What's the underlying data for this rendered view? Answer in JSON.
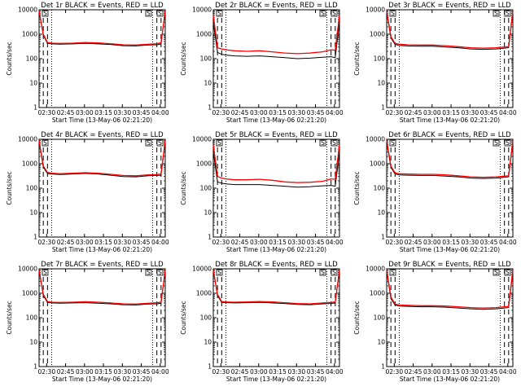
{
  "chart_data": [
    {
      "type": "line",
      "title": "Det 1r BLACK = Events, RED = LLD",
      "xlabel": "Start Time (13-May-06 02:21:20)",
      "ylabel": "Counts/sec",
      "y_scale": "log",
      "ylim": [
        1,
        10000
      ],
      "x_ticks": [
        "02:30",
        "02:45",
        "03:00",
        "03:15",
        "03:30",
        "03:45",
        "04:00"
      ],
      "y_ticks": [
        "1",
        "10",
        "100",
        "1000",
        "10000"
      ],
      "markers": [
        "S",
        "S",
        "S"
      ],
      "series": [
        {
          "color": "#000000",
          "x": [
            0,
            5,
            10,
            15,
            25,
            40,
            55,
            70,
            85,
            100,
            115,
            130,
            140,
            145,
            150
          ],
          "y": [
            9000,
            900,
            420,
            400,
            390,
            400,
            420,
            400,
            380,
            340,
            330,
            360,
            370,
            400,
            9000
          ]
        },
        {
          "color": "#ff0000",
          "x": [
            0,
            5,
            10,
            15,
            25,
            40,
            55,
            70,
            85,
            100,
            115,
            130,
            140,
            145,
            150
          ],
          "y": [
            9000,
            1000,
            460,
            430,
            420,
            430,
            460,
            440,
            410,
            370,
            360,
            390,
            410,
            450,
            9000
          ]
        }
      ]
    },
    {
      "type": "line",
      "title": "Det 2r BLACK = Events, RED = LLD",
      "xlabel": "Start Time (13-May-06 02:21:20)",
      "ylabel": "Counts/sec",
      "y_scale": "log",
      "ylim": [
        1,
        10000
      ],
      "x_ticks": [
        "02:30",
        "02:45",
        "03:00",
        "03:15",
        "03:30",
        "03:45",
        "04:00"
      ],
      "y_ticks": [
        "1",
        "10",
        "100",
        "1000",
        "10000"
      ],
      "markers": [
        "S",
        "S",
        "S"
      ],
      "series": [
        {
          "color": "#000000",
          "x": [
            0,
            5,
            10,
            15,
            25,
            40,
            55,
            70,
            85,
            100,
            115,
            130,
            140,
            145,
            150
          ],
          "y": [
            3000,
            180,
            150,
            140,
            130,
            125,
            130,
            120,
            110,
            100,
            105,
            115,
            120,
            110,
            3000
          ]
        },
        {
          "color": "#ff0000",
          "x": [
            0,
            5,
            10,
            15,
            25,
            40,
            55,
            70,
            85,
            100,
            115,
            130,
            140,
            145,
            150
          ],
          "y": [
            6000,
            280,
            250,
            230,
            210,
            200,
            210,
            190,
            170,
            160,
            170,
            190,
            230,
            220,
            6000
          ]
        }
      ]
    },
    {
      "type": "line",
      "title": "Det 3r BLACK = Events, RED = LLD",
      "xlabel": "Start Time (13-May-06 02:21:20)",
      "ylabel": "Counts/sec",
      "y_scale": "log",
      "ylim": [
        1,
        10000
      ],
      "x_ticks": [
        "02:30",
        "02:45",
        "03:00",
        "03:15",
        "03:30",
        "03:45",
        "04:00"
      ],
      "y_ticks": [
        "1",
        "10",
        "100",
        "1000",
        "10000"
      ],
      "markers": [
        "S",
        "S",
        "S"
      ],
      "series": [
        {
          "color": "#000000",
          "x": [
            0,
            5,
            10,
            15,
            25,
            40,
            55,
            70,
            85,
            100,
            115,
            130,
            140,
            145,
            150
          ],
          "y": [
            8000,
            700,
            380,
            350,
            330,
            320,
            320,
            300,
            280,
            250,
            240,
            250,
            270,
            280,
            8000
          ]
        },
        {
          "color": "#ff0000",
          "x": [
            0,
            5,
            10,
            15,
            25,
            40,
            55,
            70,
            85,
            100,
            115,
            130,
            140,
            145,
            150
          ],
          "y": [
            9000,
            800,
            420,
            390,
            370,
            360,
            360,
            340,
            310,
            280,
            270,
            280,
            300,
            310,
            9000
          ]
        }
      ]
    },
    {
      "type": "line",
      "title": "Det 4r BLACK = Events, RED = LLD",
      "xlabel": "Start Time (13-May-06 02:21:20)",
      "ylabel": "Counts/sec",
      "y_scale": "log",
      "ylim": [
        1,
        10000
      ],
      "x_ticks": [
        "02:30",
        "02:45",
        "03:00",
        "03:15",
        "03:30",
        "03:45",
        "04:00"
      ],
      "y_ticks": [
        "1",
        "10",
        "100",
        "1000",
        "10000"
      ],
      "markers": [
        "S",
        "S",
        "S"
      ],
      "series": [
        {
          "color": "#000000",
          "x": [
            0,
            5,
            10,
            15,
            25,
            40,
            55,
            70,
            85,
            100,
            115,
            130,
            140,
            145,
            150
          ],
          "y": [
            8000,
            700,
            400,
            380,
            360,
            380,
            400,
            380,
            340,
            300,
            290,
            320,
            330,
            340,
            8000
          ]
        },
        {
          "color": "#ff0000",
          "x": [
            0,
            5,
            10,
            15,
            25,
            40,
            55,
            70,
            85,
            100,
            115,
            130,
            140,
            145,
            150
          ],
          "y": [
            9000,
            800,
            440,
            410,
            390,
            410,
            430,
            410,
            370,
            330,
            320,
            350,
            360,
            380,
            9000
          ]
        }
      ]
    },
    {
      "type": "line",
      "title": "Det 5r BLACK = Events, RED = LLD",
      "xlabel": "Start Time (13-May-06 02:21:20)",
      "ylabel": "Counts/sec",
      "y_scale": "log",
      "ylim": [
        1,
        10000
      ],
      "x_ticks": [
        "02:30",
        "02:45",
        "03:00",
        "03:15",
        "03:30",
        "03:45",
        "04:00"
      ],
      "y_ticks": [
        "1",
        "10",
        "100",
        "1000",
        "10000"
      ],
      "markers": [
        "S",
        "S",
        "S"
      ],
      "series": [
        {
          "color": "#000000",
          "x": [
            0,
            5,
            10,
            15,
            25,
            40,
            55,
            70,
            85,
            100,
            115,
            130,
            140,
            145,
            150
          ],
          "y": [
            3000,
            180,
            160,
            150,
            140,
            140,
            140,
            130,
            120,
            110,
            115,
            125,
            130,
            120,
            3000
          ]
        },
        {
          "color": "#ff0000",
          "x": [
            0,
            5,
            10,
            15,
            25,
            40,
            55,
            70,
            85,
            100,
            115,
            130,
            140,
            145,
            150
          ],
          "y": [
            6000,
            300,
            260,
            240,
            220,
            220,
            230,
            210,
            180,
            170,
            175,
            190,
            240,
            230,
            6000
          ]
        }
      ]
    },
    {
      "type": "line",
      "title": "Det 6r BLACK = Events, RED = LLD",
      "xlabel": "Start Time (13-May-06 02:21:20)",
      "ylabel": "Counts/sec",
      "y_scale": "log",
      "ylim": [
        1,
        10000
      ],
      "x_ticks": [
        "02:30",
        "02:45",
        "03:00",
        "03:15",
        "03:30",
        "03:45",
        "04:00"
      ],
      "y_ticks": [
        "1",
        "10",
        "100",
        "1000",
        "10000"
      ],
      "markers": [
        "S",
        "S",
        "S"
      ],
      "series": [
        {
          "color": "#000000",
          "x": [
            0,
            5,
            10,
            15,
            25,
            40,
            55,
            70,
            85,
            100,
            115,
            130,
            140,
            145,
            150
          ],
          "y": [
            8000,
            700,
            380,
            350,
            340,
            330,
            330,
            310,
            290,
            260,
            250,
            260,
            280,
            290,
            8000
          ]
        },
        {
          "color": "#ff0000",
          "x": [
            0,
            5,
            10,
            15,
            25,
            40,
            55,
            70,
            85,
            100,
            115,
            130,
            140,
            145,
            150
          ],
          "y": [
            9000,
            800,
            420,
            390,
            380,
            370,
            370,
            350,
            320,
            290,
            280,
            290,
            310,
            320,
            9000
          ]
        }
      ]
    },
    {
      "type": "line",
      "title": "Det 7r BLACK = Events, RED = LLD",
      "xlabel": "Start Time (13-May-06 02:21:20)",
      "ylabel": "Counts/sec",
      "y_scale": "log",
      "ylim": [
        1,
        10000
      ],
      "x_ticks": [
        "02:30",
        "02:45",
        "03:00",
        "03:15",
        "03:30",
        "03:45",
        "04:00"
      ],
      "y_ticks": [
        "1",
        "10",
        "100",
        "1000",
        "10000"
      ],
      "markers": [
        "S",
        "S",
        "S"
      ],
      "series": [
        {
          "color": "#000000",
          "x": [
            0,
            5,
            10,
            15,
            25,
            40,
            55,
            70,
            85,
            100,
            115,
            130,
            140,
            145,
            150
          ],
          "y": [
            9000,
            800,
            420,
            400,
            390,
            400,
            410,
            390,
            370,
            340,
            330,
            360,
            370,
            390,
            9000
          ]
        },
        {
          "color": "#ff0000",
          "x": [
            0,
            5,
            10,
            15,
            25,
            40,
            55,
            70,
            85,
            100,
            115,
            130,
            140,
            145,
            150
          ],
          "y": [
            9000,
            900,
            460,
            430,
            420,
            430,
            450,
            430,
            400,
            370,
            360,
            390,
            410,
            430,
            9000
          ]
        }
      ]
    },
    {
      "type": "line",
      "title": "Det 8r BLACK = Events, RED = LLD",
      "xlabel": "Start Time (13-May-06 02:21:20)",
      "ylabel": "Counts/sec",
      "y_scale": "log",
      "ylim": [
        1,
        10000
      ],
      "x_ticks": [
        "02:30",
        "02:45",
        "03:00",
        "03:15",
        "03:30",
        "03:45",
        "04:00"
      ],
      "y_ticks": [
        "1",
        "10",
        "100",
        "1000",
        "10000"
      ],
      "markers": [
        "S",
        "S",
        "S"
      ],
      "series": [
        {
          "color": "#000000",
          "x": [
            0,
            5,
            10,
            15,
            25,
            40,
            55,
            70,
            85,
            100,
            115,
            130,
            140,
            145,
            150
          ],
          "y": [
            9000,
            800,
            420,
            410,
            400,
            410,
            420,
            400,
            380,
            350,
            340,
            370,
            380,
            400,
            9000
          ]
        },
        {
          "color": "#ff0000",
          "x": [
            0,
            5,
            10,
            15,
            25,
            40,
            55,
            70,
            85,
            100,
            115,
            130,
            140,
            145,
            150
          ],
          "y": [
            9000,
            900,
            460,
            440,
            430,
            440,
            460,
            440,
            410,
            380,
            370,
            400,
            420,
            440,
            9000
          ]
        }
      ]
    },
    {
      "type": "line",
      "title": "Det 9r BLACK = Events, RED = LLD",
      "xlabel": "Start Time (13-May-06 02:21:20)",
      "ylabel": "Counts/sec",
      "y_scale": "log",
      "ylim": [
        1,
        10000
      ],
      "x_ticks": [
        "02:30",
        "02:45",
        "03:00",
        "03:15",
        "03:30",
        "03:45",
        "04:00"
      ],
      "y_ticks": [
        "1",
        "10",
        "100",
        "1000",
        "10000"
      ],
      "markers": [
        "S",
        "S",
        "S"
      ],
      "series": [
        {
          "color": "#000000",
          "x": [
            0,
            5,
            10,
            15,
            25,
            40,
            55,
            70,
            85,
            100,
            115,
            130,
            140,
            145,
            150
          ],
          "y": [
            8000,
            600,
            330,
            300,
            290,
            280,
            280,
            270,
            250,
            230,
            220,
            230,
            250,
            260,
            8000
          ]
        },
        {
          "color": "#ff0000",
          "x": [
            0,
            5,
            10,
            15,
            25,
            40,
            55,
            70,
            85,
            100,
            115,
            130,
            140,
            145,
            150
          ],
          "y": [
            9000,
            700,
            360,
            330,
            320,
            310,
            310,
            300,
            280,
            260,
            250,
            260,
            280,
            290,
            9000
          ]
        }
      ]
    }
  ]
}
